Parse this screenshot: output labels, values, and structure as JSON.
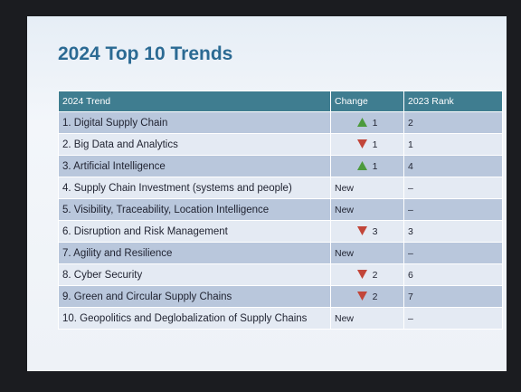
{
  "title": "2024 Top 10 Trends",
  "table": {
    "header": [
      "2024 Trend",
      "Change",
      "2023 Rank"
    ],
    "rows": [
      [
        "1. Digital Supply Chain",
        1,
        2
      ],
      [
        "2. Big Data and Analytics",
        1,
        1
      ],
      [
        "3. Artificial Intelligence",
        1,
        4
      ],
      [
        "4. Supply Chain Investment (systems and people)",
        "New",
        "–"
      ],
      [
        "5. Visibility, Traceability, Location Intelligence",
        "New",
        "–"
      ],
      [
        "6. Disruption and Risk Management",
        3,
        3
      ],
      [
        "7. Agility and Resilience",
        "New",
        "–"
      ],
      [
        "8. Cyber Security",
        2,
        6
      ],
      [
        "9. Green and Circular Supply Chains",
        2,
        7
      ],
      [
        "10. Geopolitics and Deglobalization of Supply Chains",
        "New",
        "–"
      ]
    ]
  }
}
